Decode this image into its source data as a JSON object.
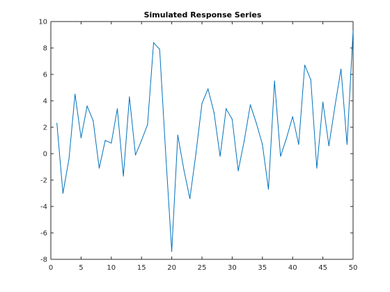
{
  "chart_data": {
    "type": "line",
    "title": "Simulated Response Series",
    "xlabel": "",
    "ylabel": "",
    "xlim": [
      0,
      50
    ],
    "ylim": [
      -8,
      10
    ],
    "x_ticks": [
      0,
      5,
      10,
      15,
      20,
      25,
      30,
      35,
      40,
      45,
      50
    ],
    "y_ticks": [
      -8,
      -6,
      -4,
      -2,
      0,
      2,
      4,
      6,
      8,
      10
    ],
    "grid": false,
    "legend": "none",
    "series": [
      {
        "color": "#0072BD",
        "x": [
          1,
          2,
          3,
          4,
          5,
          6,
          7,
          8,
          9,
          10,
          11,
          12,
          13,
          14,
          15,
          16,
          17,
          18,
          19,
          20,
          21,
          22,
          23,
          24,
          25,
          26,
          27,
          28,
          29,
          30,
          31,
          32,
          33,
          34,
          35,
          36,
          37,
          38,
          39,
          40,
          41,
          42,
          43,
          44,
          45,
          46,
          47,
          48,
          49,
          50
        ],
        "y": [
          2.3,
          -3.0,
          -0.4,
          4.5,
          1.2,
          3.6,
          2.5,
          -1.1,
          1.0,
          0.8,
          3.4,
          -1.7,
          4.3,
          -0.1,
          1.0,
          2.2,
          8.4,
          7.9,
          0.0,
          -7.4,
          1.4,
          -1.2,
          -3.4,
          0.0,
          3.8,
          4.9,
          3.1,
          -0.2,
          3.4,
          2.6,
          -1.3,
          1.0,
          3.7,
          2.3,
          0.7,
          -2.7,
          5.5,
          -0.2,
          1.2,
          2.8,
          0.7,
          6.7,
          5.6,
          -1.1,
          3.9,
          0.6,
          3.6,
          6.4,
          0.7,
          9.3
        ]
      }
    ]
  }
}
